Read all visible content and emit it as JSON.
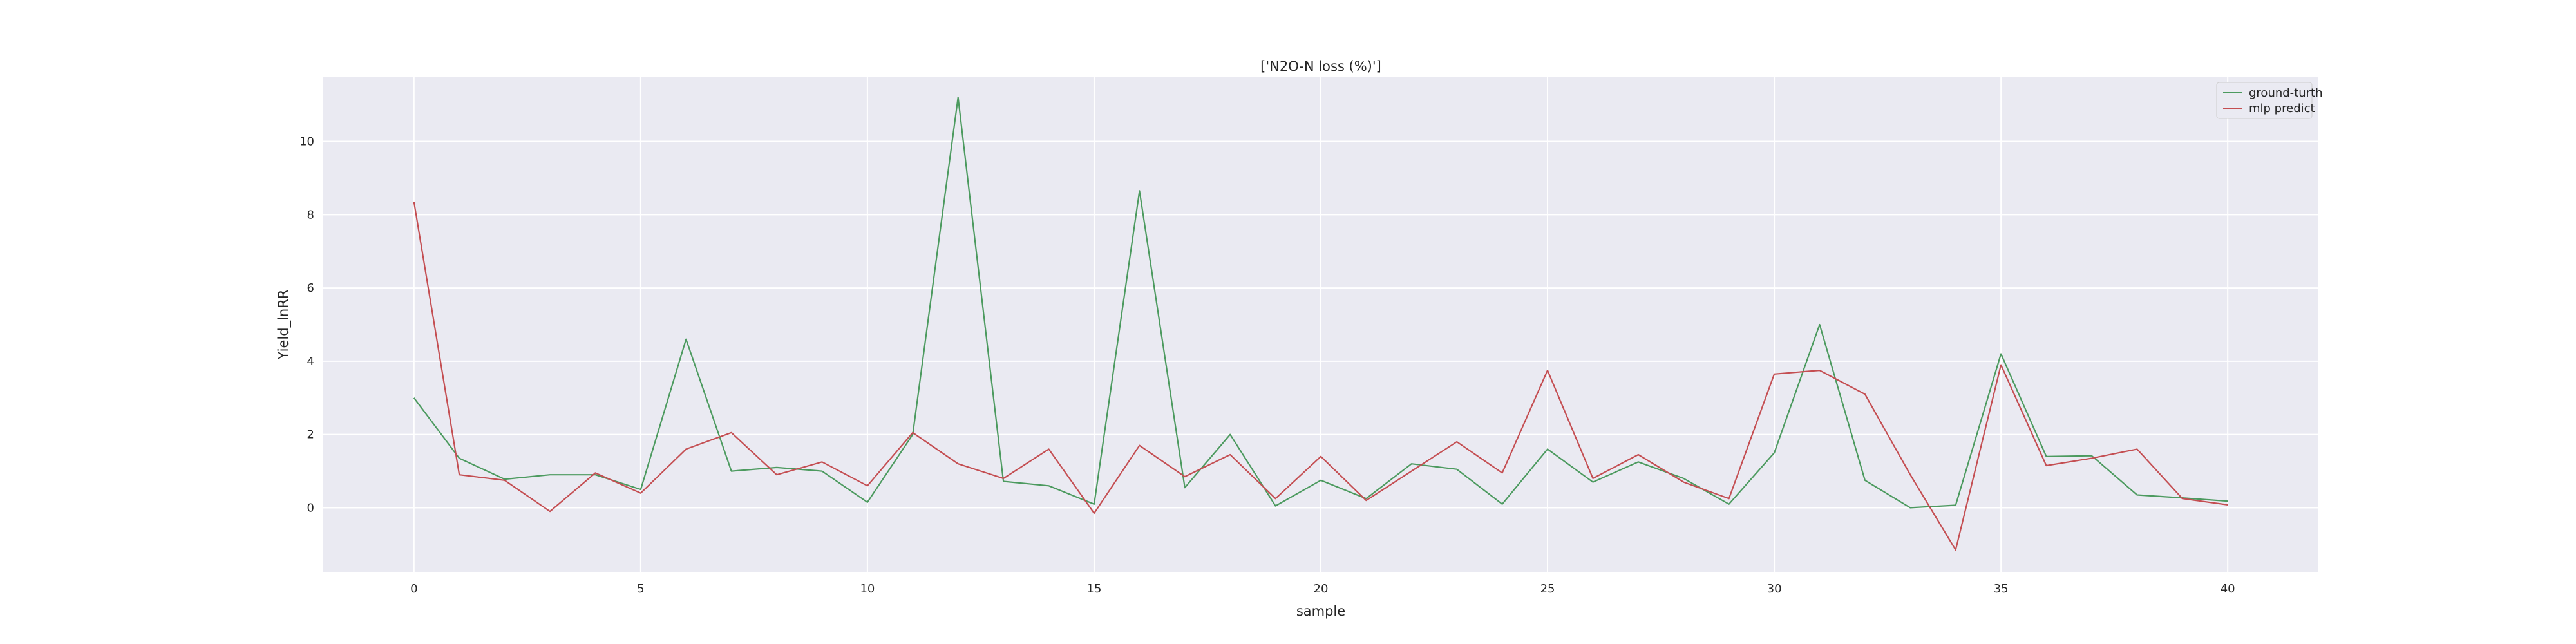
{
  "chart_data": {
    "type": "line",
    "title": "['N2O-N loss (%)']",
    "xlabel": "sample",
    "ylabel": "Yield_lnRR",
    "xlim": [
      -2,
      42
    ],
    "ylim": [
      -1.75,
      11.75
    ],
    "x_ticks": [
      0,
      5,
      10,
      15,
      20,
      25,
      30,
      35,
      40
    ],
    "y_ticks": [
      0,
      2,
      4,
      6,
      8,
      10
    ],
    "grid": true,
    "legend_position": "top-right",
    "x": [
      0,
      1,
      2,
      3,
      4,
      5,
      6,
      7,
      8,
      9,
      10,
      11,
      12,
      13,
      14,
      15,
      16,
      17,
      18,
      19,
      20,
      21,
      22,
      23,
      24,
      25,
      26,
      27,
      28,
      29,
      30,
      31,
      32,
      33,
      34,
      35,
      36,
      37,
      38,
      39,
      40
    ],
    "series": [
      {
        "name": "ground-turth",
        "color": "#4c9a5f",
        "values": [
          3.0,
          1.35,
          0.78,
          0.9,
          0.9,
          0.5,
          4.6,
          1.0,
          1.1,
          1.0,
          0.15,
          2.0,
          11.2,
          0.72,
          0.6,
          0.1,
          8.65,
          0.55,
          2.0,
          0.05,
          0.75,
          0.25,
          1.2,
          1.05,
          0.1,
          1.6,
          0.7,
          1.25,
          0.8,
          0.1,
          1.5,
          5.0,
          0.75,
          0.0,
          0.07,
          4.2,
          1.4,
          1.42,
          0.35,
          0.27,
          0.18
        ]
      },
      {
        "name": "mlp predict",
        "color": "#c44e52",
        "values": [
          8.35,
          0.9,
          0.75,
          -0.1,
          0.95,
          0.4,
          1.6,
          2.05,
          0.9,
          1.25,
          0.6,
          2.05,
          1.2,
          0.8,
          1.6,
          -0.15,
          1.7,
          0.85,
          1.45,
          0.25,
          1.4,
          0.2,
          1.0,
          1.8,
          0.95,
          3.75,
          0.8,
          1.45,
          0.7,
          0.25,
          3.65,
          3.75,
          3.1,
          0.9,
          -1.15,
          3.9,
          1.15,
          1.35,
          1.6,
          0.25,
          0.08
        ]
      }
    ]
  }
}
